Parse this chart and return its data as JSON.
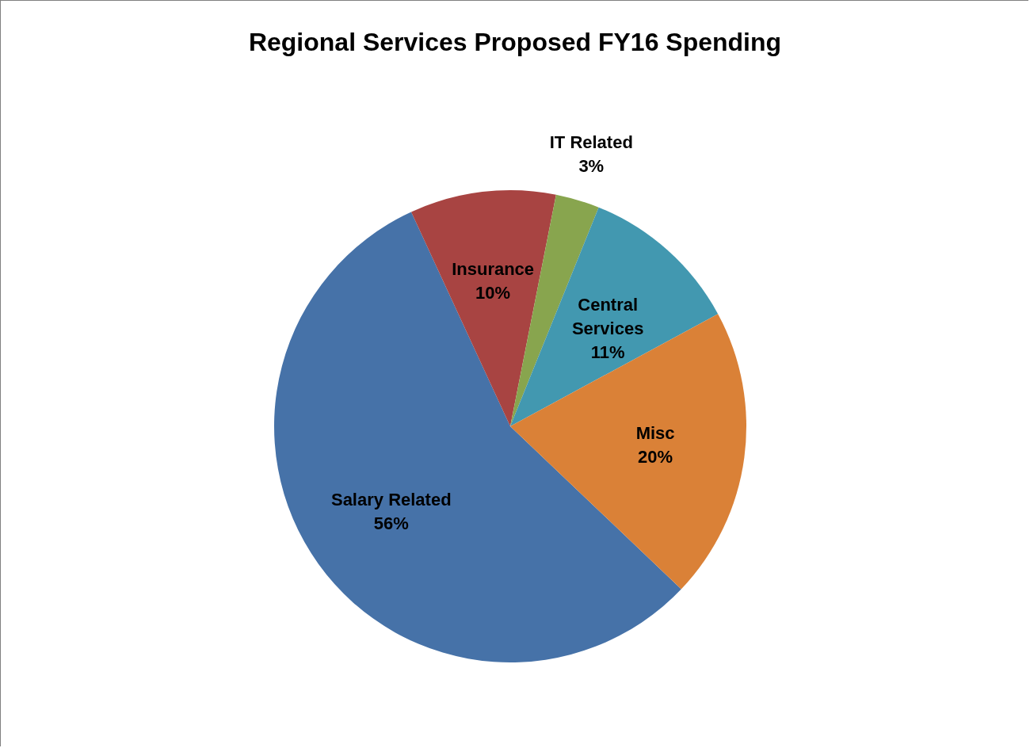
{
  "chart_data": {
    "type": "pie",
    "title": "Regional  Services  Proposed  FY16  Spending",
    "categories": [
      "Salary Related",
      "Insurance",
      "IT Related",
      "Central Services",
      "Misc"
    ],
    "values": [
      56,
      10,
      3,
      11,
      20
    ],
    "value_labels": [
      "56%",
      "10%",
      "3%",
      "11%",
      "20%"
    ],
    "colors": [
      "#4672a8",
      "#a84442",
      "#88a54e",
      "#4298b0",
      "#da8137"
    ],
    "legend": false
  }
}
